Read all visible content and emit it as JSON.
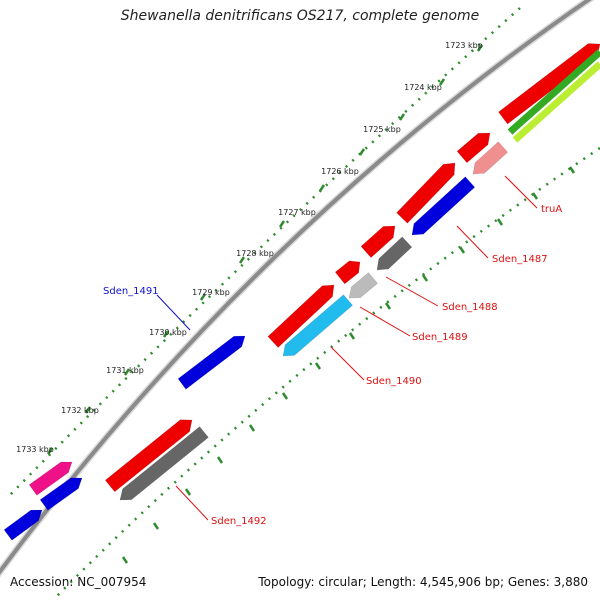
{
  "title": "Shewanella denitrificans OS217, complete genome",
  "accession": "Accession: NC_007954",
  "summary": "Topology: circular; Length: 4,545,906 bp; Genes: 3,880",
  "ticks": [
    "1723 kbp",
    "1724 kbp",
    "1725 kbp",
    "1726 kbp",
    "1727 kbp",
    "1728 kbp",
    "1729 kbp",
    "1730 kbp",
    "1731 kbp",
    "1732 kbp",
    "1733 kbp"
  ],
  "gene_labels": [
    "truA",
    "Sden_1487",
    "Sden_1488",
    "Sden_1489",
    "Sden_1490",
    "Sden_1491",
    "Sden_1492"
  ],
  "colors": {
    "backbone": "#8a8a8a",
    "tick_dots": "#2e8b2e",
    "red_label": "#dd1111",
    "blue_label": "#1111cc",
    "cds_red": "#ee0000",
    "cds_blue": "#0000dd",
    "cds_grey": "#666666",
    "cds_lightgrey": "#bbbbbb",
    "cds_cyan": "#22bbee",
    "cds_pink": "#f08f8f",
    "cds_magenta": "#ee1188",
    "cds_green": "#33aa22",
    "cds_lime": "#bbee33"
  }
}
